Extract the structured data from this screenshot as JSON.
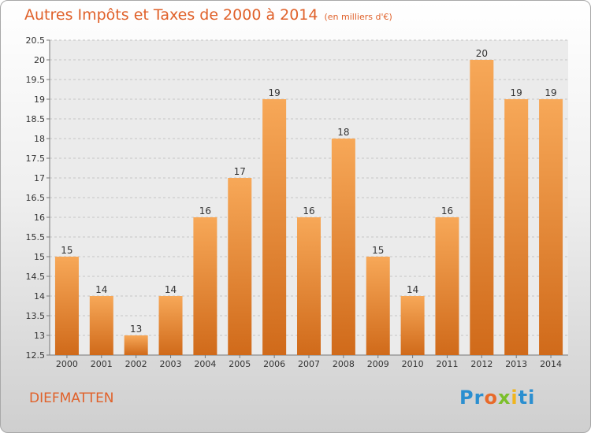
{
  "title": "Autres Impôts et Taxes de 2000 à 2014",
  "unit": "(en milliers d'€)",
  "commune": "DIEFMATTEN",
  "logo_text": "Proxiti",
  "colors": {
    "accent": "#e0612a",
    "bar_top": "#f7a858",
    "bar_bottom": "#d06a1a"
  },
  "chart_data": {
    "type": "bar",
    "categories": [
      "2000",
      "2001",
      "2002",
      "2003",
      "2004",
      "2005",
      "2006",
      "2007",
      "2008",
      "2009",
      "2010",
      "2011",
      "2012",
      "2013",
      "2014"
    ],
    "values": [
      15,
      14,
      13,
      14,
      16,
      17,
      19,
      16,
      18,
      15,
      14,
      16,
      20,
      19,
      19
    ],
    "title": "Autres Impôts et Taxes de 2000 à 2014",
    "xlabel": "",
    "ylabel": "",
    "ylim": [
      12.5,
      20.5
    ],
    "yticks": [
      "12.5",
      "13",
      "13.5",
      "14",
      "14.5",
      "15",
      "15.5",
      "16",
      "16.5",
      "17",
      "17.5",
      "18",
      "18.5",
      "19",
      "19.5",
      "20",
      "20.5"
    ],
    "grid": "horizontal dashed",
    "data_labels": true
  }
}
